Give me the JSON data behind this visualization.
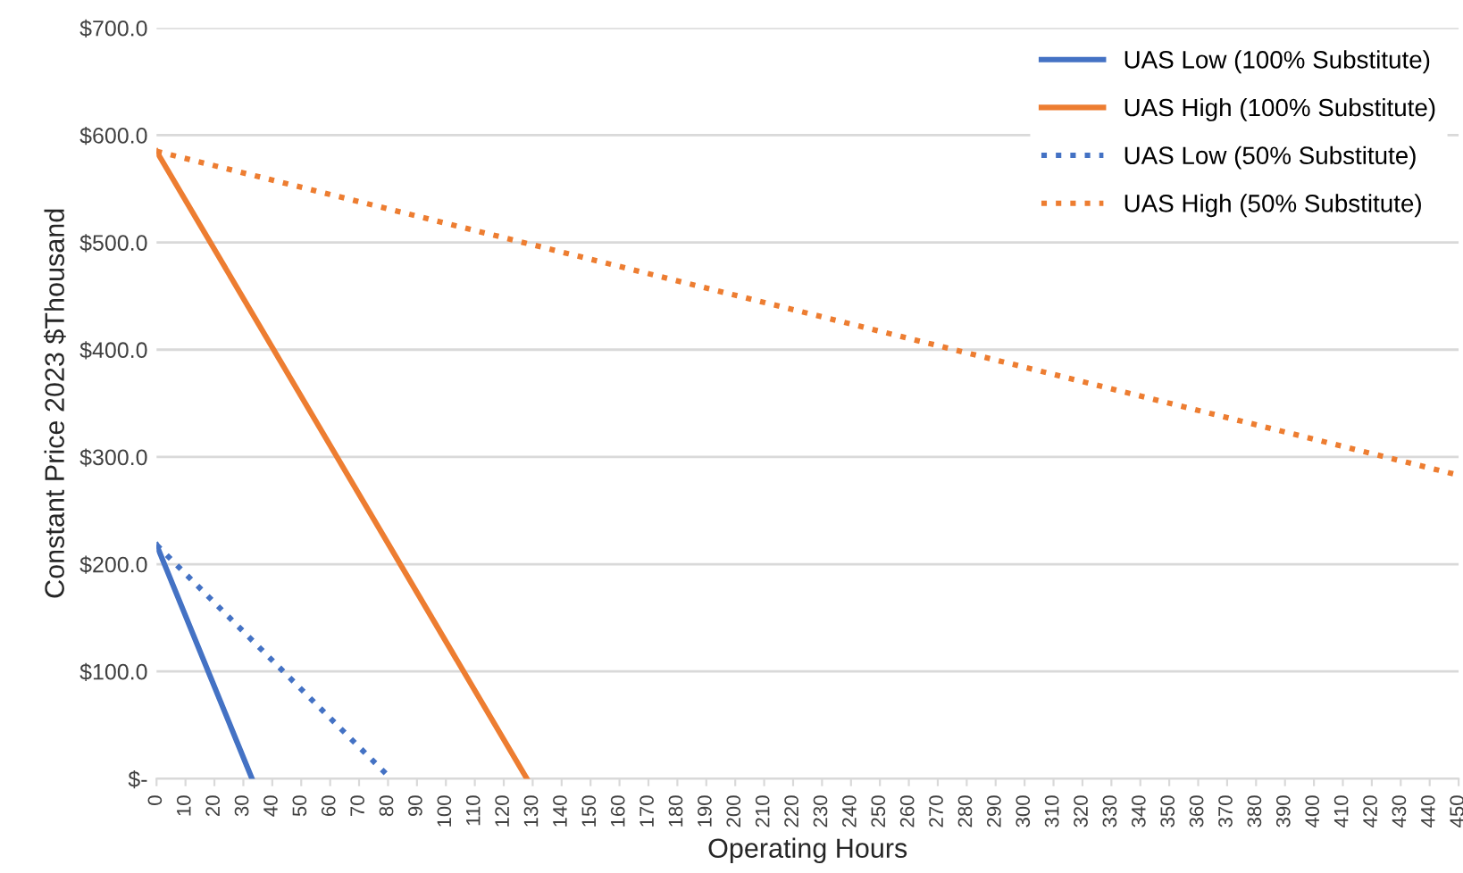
{
  "chart_data": {
    "type": "line",
    "xlabel": "Operating Hours",
    "ylabel": "Constant Price 2023 $Thousand",
    "xlim": [
      0,
      450
    ],
    "xticks": [
      0,
      10,
      20,
      30,
      40,
      50,
      60,
      70,
      80,
      90,
      100,
      110,
      120,
      130,
      140,
      150,
      160,
      170,
      180,
      190,
      200,
      210,
      220,
      230,
      240,
      250,
      260,
      270,
      280,
      290,
      300,
      310,
      320,
      330,
      340,
      350,
      360,
      370,
      380,
      390,
      400,
      410,
      420,
      430,
      440,
      450
    ],
    "ylim": [
      0,
      700
    ],
    "yticks": [
      {
        "value": 0,
        "label": "$-"
      },
      {
        "value": 100,
        "label": "$100.0"
      },
      {
        "value": 200,
        "label": "$200.0"
      },
      {
        "value": 300,
        "label": "$300.0"
      },
      {
        "value": 400,
        "label": "$400.0"
      },
      {
        "value": 500,
        "label": "$500.0"
      },
      {
        "value": 600,
        "label": "$600.0"
      },
      {
        "value": 700,
        "label": "$700.0"
      }
    ],
    "grid": "y",
    "legend": "top right",
    "marker": "none",
    "series": [
      {
        "name": "UAS Low (100% Substitute)",
        "color": "#4472c4",
        "line_style": "solid",
        "x": [
          0,
          33
        ],
        "values": [
          218,
          0
        ]
      },
      {
        "name": "UAS High (100% Substitute)",
        "color": "#ed7d31",
        "line_style": "solid",
        "x": [
          0,
          128
        ],
        "values": [
          585,
          0
        ]
      },
      {
        "name": "UAS Low (50% Substitute)",
        "color": "#4472c4",
        "line_style": "dotted",
        "x": [
          0,
          81
        ],
        "values": [
          218,
          0
        ]
      },
      {
        "name": "UAS High (50% Substitute)",
        "color": "#ed7d31",
        "line_style": "dotted",
        "x": [
          0,
          450
        ],
        "values": [
          585,
          283
        ]
      }
    ]
  }
}
